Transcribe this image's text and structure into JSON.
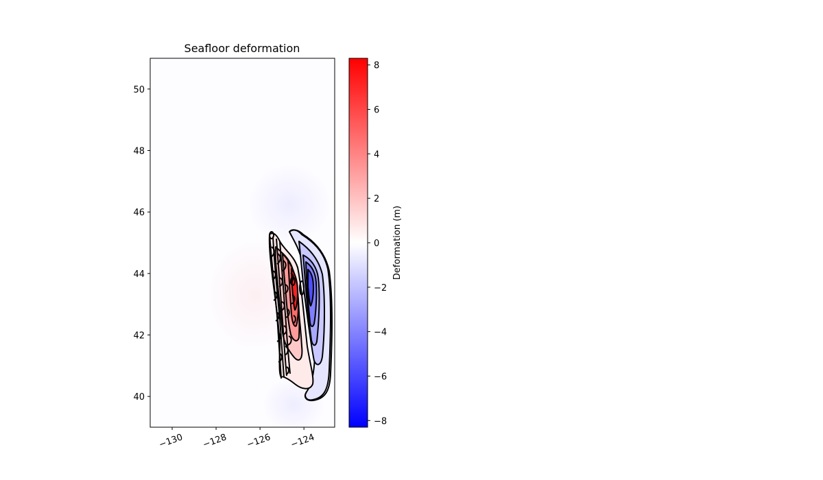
{
  "chart_data": {
    "type": "heatmap",
    "title": "Seafloor deformation",
    "xlabel": "",
    "ylabel": "",
    "xlim": [
      -131,
      -122.6
    ],
    "ylim": [
      39,
      51
    ],
    "x_ticks": [
      -130,
      -128,
      -126,
      -124
    ],
    "x_tick_labels": [
      "−130",
      "−128",
      "−126",
      "−124"
    ],
    "y_ticks": [
      40,
      42,
      44,
      46,
      48,
      50
    ],
    "y_tick_labels": [
      "40",
      "42",
      "44",
      "46",
      "48",
      "50"
    ],
    "grid": false,
    "colormap": "bwr",
    "colorbar": {
      "label": "Deformation (m)",
      "range": [
        -8.3,
        8.3
      ],
      "ticks": [
        -8,
        -6,
        -4,
        -2,
        0,
        2,
        4,
        6,
        8
      ],
      "tick_labels": [
        "−8",
        "−6",
        "−4",
        "−2",
        "0",
        "2",
        "4",
        "6",
        "8"
      ],
      "low_color": "#0000ff",
      "mid_color": "#ffffff",
      "high_color": "#ff0000"
    },
    "field_features": [
      {
        "kind": "uplift",
        "lon": -124.4,
        "lat": 43.7,
        "value": 8.3
      },
      {
        "kind": "uplift",
        "lon": -124.5,
        "lat": 42.5,
        "value": 4.5
      },
      {
        "kind": "uplift",
        "lon": -124.4,
        "lat": 41.0,
        "value": 1.5
      },
      {
        "kind": "subsidence",
        "lon": -123.6,
        "lat": 43.6,
        "value": -6.0
      },
      {
        "kind": "subsidence",
        "lon": -123.7,
        "lat": 42.0,
        "value": -2.5
      }
    ],
    "contour_color": "#000000"
  }
}
